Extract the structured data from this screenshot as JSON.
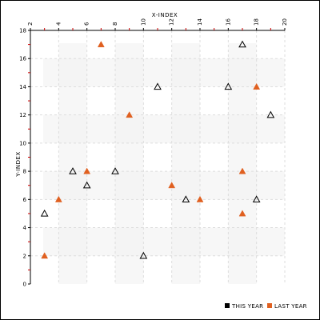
{
  "chart_data": {
    "type": "scatter",
    "xlabel": "X-INDEX",
    "ylabel": "Y-INDEX",
    "xlim": [
      2,
      20
    ],
    "ylim": [
      0,
      18
    ],
    "x_ticks": [
      2,
      4,
      6,
      8,
      10,
      12,
      14,
      16,
      18,
      20
    ],
    "y_ticks": [
      0,
      2,
      4,
      6,
      8,
      10,
      12,
      14,
      16,
      18
    ],
    "grid": true,
    "legend_position": "bottom-right",
    "series": [
      {
        "name": "THIS YEAR",
        "color": "#000000",
        "marker": "triangle-outline",
        "points": [
          {
            "x": 3,
            "y": 5
          },
          {
            "x": 5,
            "y": 8
          },
          {
            "x": 6,
            "y": 7
          },
          {
            "x": 8,
            "y": 8
          },
          {
            "x": 10,
            "y": 2
          },
          {
            "x": 11,
            "y": 14
          },
          {
            "x": 13,
            "y": 6
          },
          {
            "x": 16,
            "y": 14
          },
          {
            "x": 17,
            "y": 17
          },
          {
            "x": 18,
            "y": 6
          },
          {
            "x": 19,
            "y": 12
          }
        ]
      },
      {
        "name": "LAST YEAR",
        "color": "#e06020",
        "marker": "triangle-filled",
        "points": [
          {
            "x": 3,
            "y": 2
          },
          {
            "x": 4,
            "y": 6
          },
          {
            "x": 6,
            "y": 8
          },
          {
            "x": 7,
            "y": 17
          },
          {
            "x": 9,
            "y": 12
          },
          {
            "x": 12,
            "y": 7
          },
          {
            "x": 14,
            "y": 6
          },
          {
            "x": 17,
            "y": 8
          },
          {
            "x": 17,
            "y": 5
          },
          {
            "x": 18,
            "y": 14
          }
        ]
      }
    ]
  }
}
